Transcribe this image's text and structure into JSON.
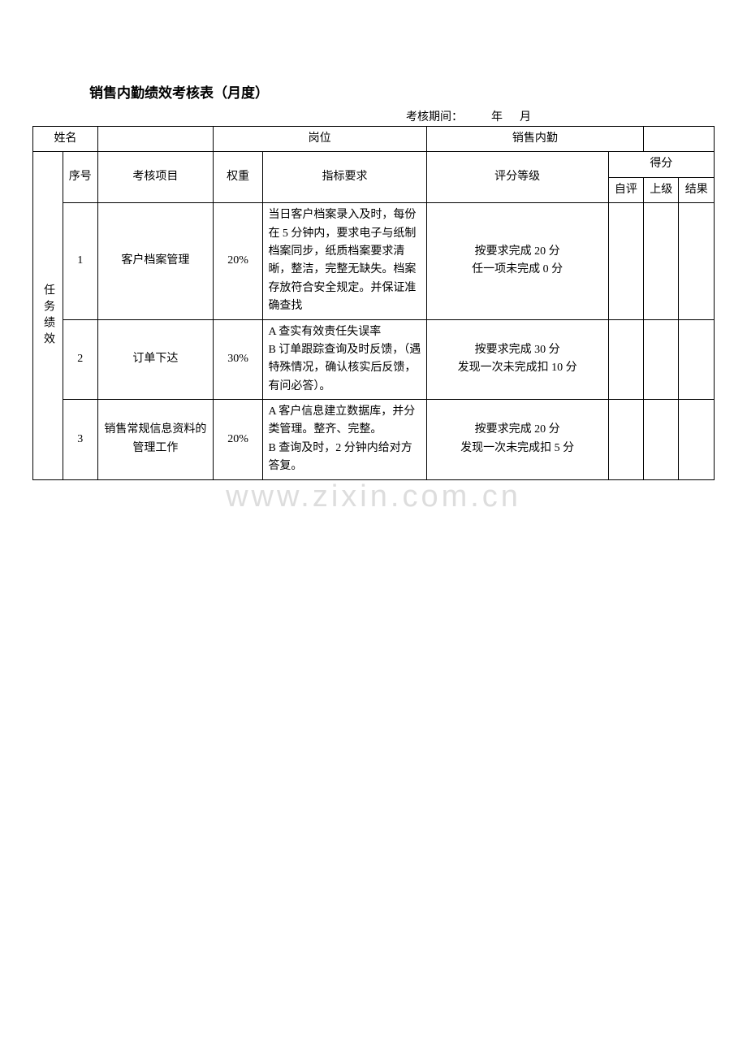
{
  "title": "销售内勤绩效考核表（月度）",
  "period_label": "考核期间：",
  "year_label": "年",
  "month_label": "月",
  "header": {
    "name_label": "姓名",
    "position_label": "岗位",
    "position_value": "销售内勤"
  },
  "columns": {
    "seq": "序号",
    "item": "考核项目",
    "weight": "权重",
    "requirement": "指标要求",
    "rating": "评分等级",
    "score_group": "得分",
    "self": "自评",
    "superior": "上级",
    "result": "结果"
  },
  "category_label": "任务绩效",
  "rows": [
    {
      "seq": "1",
      "item": "客户档案管理",
      "weight": "20%",
      "requirement": "当日客户档案录入及时，每份在 5 分钟内，要求电子与纸制档案同步，纸质档案要求清晰，整洁，完整无缺失。档案存放符合安全规定。并保证准确查找",
      "rating": "按要求完成 20 分\n任一项未完成 0 分"
    },
    {
      "seq": "2",
      "item": "订单下达",
      "weight": "30%",
      "requirement": "A 查实有效责任失误率\nB 订单跟踪查询及时反馈，（遇特殊情况，确认核实后反馈，有问必答）。",
      "rating": "按要求完成 30 分\n发现一次未完成扣 10 分"
    },
    {
      "seq": "3",
      "item": "销售常规信息资料的管理工作",
      "weight": "20%",
      "requirement": "A 客户信息建立数据库，并分类管理。整齐、完整。\nB 查询及时，2 分钟内给对方答复。",
      "rating": "按要求完成 20 分\n发现一次未完成扣 5 分"
    }
  ],
  "watermark": "www.zixin.com.cn",
  "style": {
    "col_widths": {
      "category": 28,
      "seq": 34,
      "item": 110,
      "weight": 48,
      "requirement": 162,
      "rating": 180,
      "self": 34,
      "superior": 34,
      "result": 34
    },
    "colors": {
      "bg": "#ffffff",
      "text": "#000000",
      "border": "#000000",
      "watermark": "#dddddd"
    },
    "font_sizes": {
      "title": 17,
      "body": 14,
      "watermark": 38
    }
  }
}
